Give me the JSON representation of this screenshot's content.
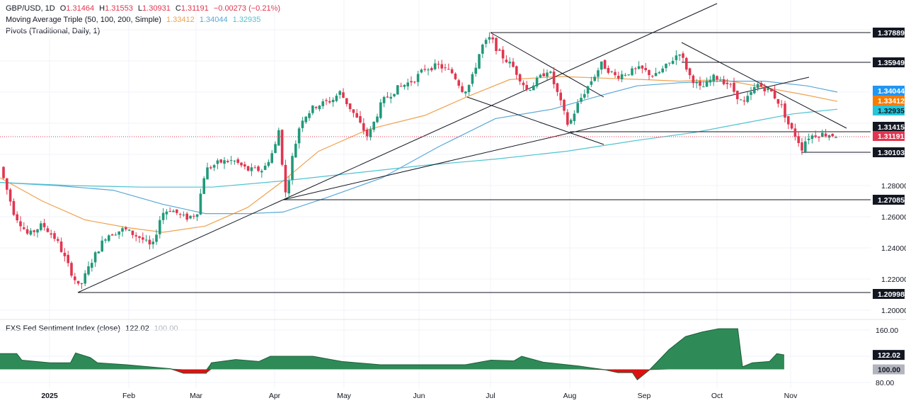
{
  "header": {
    "symbol": "GBP/USD, 1D",
    "ohlc": {
      "o_label": "O",
      "o": "1.31464",
      "h_label": "H",
      "h": "1.31553",
      "l_label": "L",
      "l": "1.30931",
      "c_label": "C",
      "c": "1.31191",
      "change": "−0.00273 (−0.21%)"
    },
    "ma_title": "Moving Average Triple (50, 100, 200, Simple)",
    "ma_values": [
      "1.33412",
      "1.34044",
      "1.32935"
    ],
    "pivots_title": "Pivots (Traditional, Daily, 1)"
  },
  "sub_pane": {
    "title": "FXS Fed Sentiment Index (close)",
    "value": "122.02",
    "baseline": "100.00"
  },
  "colors": {
    "up": "#22997a",
    "down": "#e2354f",
    "ma50": "#f0a14e",
    "ma100": "#5aa8d8",
    "ma200": "#4fc3d0",
    "area_pos": "#2e8b57",
    "area_neg": "#dd1111",
    "grid": "#f0f3fa"
  },
  "chart_data": [
    {
      "type": "candlestick",
      "title": "GBP/USD, 1D",
      "x_ticks": [
        "2025",
        "Feb",
        "Mar",
        "Apr",
        "May",
        "Jun",
        "Jul",
        "Aug",
        "Sep",
        "Oct",
        "Nov"
      ],
      "y_ticks": [
        "1.20000",
        "1.22000",
        "1.24000",
        "1.26000",
        "1.28000"
      ],
      "ylim": [
        1.195,
        1.395
      ],
      "price_tags": [
        {
          "value": "1.37889",
          "style": "black",
          "label": "pivot-r"
        },
        {
          "value": "1.35949",
          "style": "black",
          "label": "pivot"
        },
        {
          "value": "1.34044",
          "style": "blue",
          "label": "ma100"
        },
        {
          "value": "1.33412",
          "style": "orange",
          "label": "ma50"
        },
        {
          "value": "1.32935",
          "style": "teal",
          "label": "ma200"
        },
        {
          "value": "1.31415",
          "style": "black",
          "label": "pivot"
        },
        {
          "value": "1.31191",
          "style": "red",
          "label": "last-price"
        },
        {
          "value": "1.30103",
          "style": "black",
          "label": "pivot"
        },
        {
          "value": "1.27085",
          "style": "black",
          "label": "pivot"
        },
        {
          "value": "1.20998",
          "style": "black",
          "label": "pivot"
        }
      ],
      "last": {
        "open": 1.31464,
        "high": 1.31553,
        "low": 1.30931,
        "close": 1.31191,
        "change": -0.00273,
        "change_pct": -0.21
      },
      "moving_averages": {
        "sma50": 1.33412,
        "sma100": 1.34044,
        "sma200": 1.32935
      },
      "key_closes_approx": [
        {
          "x": "Jan 13",
          "low": 1.21
        },
        {
          "x": "Apr 7",
          "low": 1.2708
        },
        {
          "x": "Jul 1",
          "high": 1.3789
        },
        {
          "x": "Aug 1",
          "low": 1.3141
        },
        {
          "x": "Sep 17",
          "high": 1.3726
        },
        {
          "x": "Nov 4",
          "low": 1.301
        },
        {
          "x": "Nov 18",
          "close": 1.3119
        }
      ]
    },
    {
      "type": "area",
      "title": "FXS Fed Sentiment Index (close)",
      "baseline": 100,
      "y_ticks": [
        "160.00",
        "80.00"
      ],
      "ylim": [
        75,
        165
      ],
      "x_ticks": [
        "2025",
        "Feb",
        "Mar",
        "Apr",
        "May",
        "Jun",
        "Jul",
        "Aug",
        "Sep",
        "Oct",
        "Nov"
      ],
      "last": 122.02,
      "points_approx": [
        {
          "x": "Jan 1",
          "y": 124
        },
        {
          "x": "Jan 7",
          "y": 124
        },
        {
          "x": "Jan 9",
          "y": 114
        },
        {
          "x": "Jan 20",
          "y": 110
        },
        {
          "x": "Jan 28",
          "y": 110
        },
        {
          "x": "Jan 30",
          "y": 125
        },
        {
          "x": "Feb 5",
          "y": 118
        },
        {
          "x": "Feb 8",
          "y": 110
        },
        {
          "x": "Feb 20",
          "y": 107
        },
        {
          "x": "Mar 10",
          "y": 101
        },
        {
          "x": "Mar 15",
          "y": 94
        },
        {
          "x": "Mar 24",
          "y": 94
        },
        {
          "x": "Mar 26",
          "y": 110
        },
        {
          "x": "Apr 5",
          "y": 115
        },
        {
          "x": "Apr 15",
          "y": 112
        },
        {
          "x": "Apr 20",
          "y": 120
        },
        {
          "x": "May 8",
          "y": 120
        },
        {
          "x": "May 20",
          "y": 112
        },
        {
          "x": "Jun 5",
          "y": 107
        },
        {
          "x": "Jun 20",
          "y": 107
        },
        {
          "x": "Jul 10",
          "y": 107
        },
        {
          "x": "Jul 20",
          "y": 114
        },
        {
          "x": "Jul 29",
          "y": 113
        },
        {
          "x": "Aug 1",
          "y": 120
        },
        {
          "x": "Aug 10",
          "y": 111
        },
        {
          "x": "Aug 25",
          "y": 105
        },
        {
          "x": "Sep 5",
          "y": 99
        },
        {
          "x": "Sep 10",
          "y": 95
        },
        {
          "x": "Sep 16",
          "y": 95
        },
        {
          "x": "Sep 18",
          "y": 84
        },
        {
          "x": "Sep 23",
          "y": 99
        },
        {
          "x": "Oct 1",
          "y": 130
        },
        {
          "x": "Oct 8",
          "y": 150
        },
        {
          "x": "Oct 15",
          "y": 157
        },
        {
          "x": "Oct 22",
          "y": 162
        },
        {
          "x": "Oct 30",
          "y": 162
        },
        {
          "x": "Nov 1",
          "y": 104
        },
        {
          "x": "Nov 5",
          "y": 110
        },
        {
          "x": "Nov 12",
          "y": 112
        },
        {
          "x": "Nov 15",
          "y": 124
        },
        {
          "x": "Nov 18",
          "y": 122
        }
      ]
    }
  ]
}
